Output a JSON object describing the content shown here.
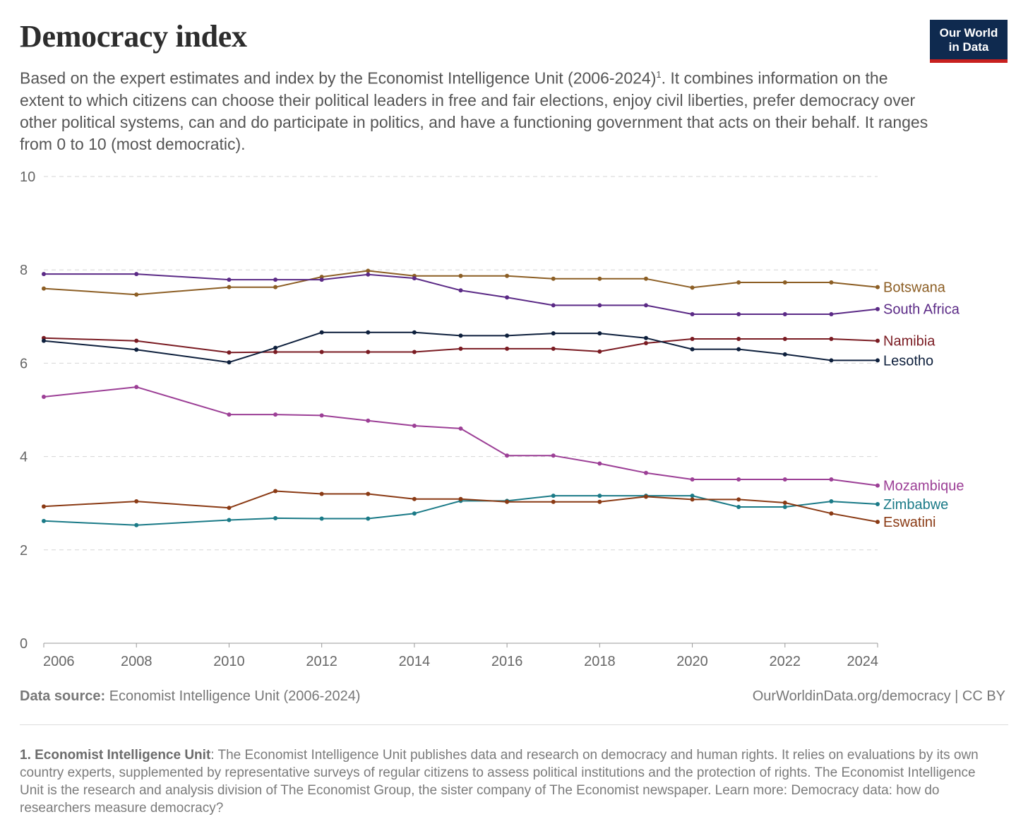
{
  "header": {
    "title": "Democracy index",
    "subtitle_main": "Based on the expert estimates and index by the Economist Intelligence Unit (2006-2024)",
    "subtitle_ref": "1",
    "subtitle_rest": ". It combines information on the extent to which citizens can choose their political leaders in free and fair elections, enjoy civil liberties, prefer democracy over other political systems, can and do participate in politics, and have a functioning government that acts on their behalf. It ranges from 0 to 10 (most democratic)."
  },
  "logo": {
    "line1": "Our World",
    "line2": "in Data",
    "bg_color": "#0f2a4f",
    "bar_color": "#c8201f"
  },
  "footer": {
    "source_label": "Data source:",
    "source_text": "Economist Intelligence Unit (2006-2024)",
    "url": "OurWorldinData.org/democracy | CC BY",
    "footnote_label": "1. Economist Intelligence Unit",
    "footnote_text": ": The Economist Intelligence Unit publishes data and research on democracy and human rights. It relies on evaluations by its own country experts, supplemented by representative surveys of regular citizens to assess political institutions and the protection of rights. The Economist Intelligence Unit is the research and analysis division of The Economist Group, the sister company of The Economist newspaper. Learn more: Democracy data: how do researchers measure democracy?"
  },
  "chart_data": {
    "type": "line",
    "title": "Democracy index",
    "xlim": [
      2006,
      2024
    ],
    "ylim": [
      0,
      10
    ],
    "x_ticks": [
      2006,
      2008,
      2010,
      2012,
      2014,
      2016,
      2018,
      2020,
      2022,
      2024
    ],
    "y_ticks": [
      0,
      2,
      4,
      6,
      8,
      10
    ],
    "grid": "horizontal dashed",
    "legend": "right (labels at line ends)",
    "series": [
      {
        "name": "Botswana",
        "color": "#8c5e24",
        "points": [
          [
            2006,
            7.6
          ],
          [
            2008,
            7.47
          ],
          [
            2010,
            7.63
          ],
          [
            2011,
            7.63
          ],
          [
            2012,
            7.85
          ],
          [
            2013,
            7.98
          ],
          [
            2014,
            7.87
          ],
          [
            2015,
            7.87
          ],
          [
            2016,
            7.87
          ],
          [
            2017,
            7.81
          ],
          [
            2018,
            7.81
          ],
          [
            2019,
            7.81
          ],
          [
            2020,
            7.62
          ],
          [
            2021,
            7.73
          ],
          [
            2022,
            7.73
          ],
          [
            2023,
            7.73
          ],
          [
            2024,
            7.63
          ]
        ]
      },
      {
        "name": "South Africa",
        "color": "#5b2a86",
        "points": [
          [
            2006,
            7.91
          ],
          [
            2008,
            7.91
          ],
          [
            2010,
            7.79
          ],
          [
            2011,
            7.79
          ],
          [
            2012,
            7.79
          ],
          [
            2013,
            7.9
          ],
          [
            2014,
            7.82
          ],
          [
            2015,
            7.56
          ],
          [
            2016,
            7.41
          ],
          [
            2017,
            7.24
          ],
          [
            2018,
            7.24
          ],
          [
            2019,
            7.24
          ],
          [
            2020,
            7.05
          ],
          [
            2021,
            7.05
          ],
          [
            2022,
            7.05
          ],
          [
            2023,
            7.05
          ],
          [
            2024,
            7.16
          ]
        ]
      },
      {
        "name": "Namibia",
        "color": "#7a1b22",
        "points": [
          [
            2006,
            6.54
          ],
          [
            2008,
            6.48
          ],
          [
            2010,
            6.23
          ],
          [
            2011,
            6.24
          ],
          [
            2012,
            6.24
          ],
          [
            2013,
            6.24
          ],
          [
            2014,
            6.24
          ],
          [
            2015,
            6.31
          ],
          [
            2016,
            6.31
          ],
          [
            2017,
            6.31
          ],
          [
            2018,
            6.25
          ],
          [
            2019,
            6.43
          ],
          [
            2020,
            6.52
          ],
          [
            2021,
            6.52
          ],
          [
            2022,
            6.52
          ],
          [
            2023,
            6.52
          ],
          [
            2024,
            6.48
          ]
        ]
      },
      {
        "name": "Lesotho",
        "color": "#0d1f3c",
        "points": [
          [
            2006,
            6.48
          ],
          [
            2008,
            6.29
          ],
          [
            2010,
            6.02
          ],
          [
            2011,
            6.33
          ],
          [
            2012,
            6.66
          ],
          [
            2013,
            6.66
          ],
          [
            2014,
            6.66
          ],
          [
            2015,
            6.59
          ],
          [
            2016,
            6.59
          ],
          [
            2017,
            6.64
          ],
          [
            2018,
            6.64
          ],
          [
            2019,
            6.54
          ],
          [
            2020,
            6.3
          ],
          [
            2021,
            6.3
          ],
          [
            2022,
            6.19
          ],
          [
            2023,
            6.06
          ],
          [
            2024,
            6.06
          ]
        ]
      },
      {
        "name": "Mozambique",
        "color": "#9c3f96",
        "points": [
          [
            2006,
            5.28
          ],
          [
            2008,
            5.49
          ],
          [
            2010,
            4.9
          ],
          [
            2011,
            4.9
          ],
          [
            2012,
            4.88
          ],
          [
            2013,
            4.77
          ],
          [
            2014,
            4.66
          ],
          [
            2015,
            4.6
          ],
          [
            2016,
            4.02
          ],
          [
            2017,
            4.02
          ],
          [
            2018,
            3.85
          ],
          [
            2019,
            3.65
          ],
          [
            2020,
            3.51
          ],
          [
            2021,
            3.51
          ],
          [
            2022,
            3.51
          ],
          [
            2023,
            3.51
          ],
          [
            2024,
            3.38
          ]
        ]
      },
      {
        "name": "Zimbabwe",
        "color": "#1a7a87",
        "points": [
          [
            2006,
            2.62
          ],
          [
            2008,
            2.53
          ],
          [
            2010,
            2.64
          ],
          [
            2011,
            2.68
          ],
          [
            2012,
            2.67
          ],
          [
            2013,
            2.67
          ],
          [
            2014,
            2.78
          ],
          [
            2015,
            3.05
          ],
          [
            2016,
            3.05
          ],
          [
            2017,
            3.16
          ],
          [
            2018,
            3.16
          ],
          [
            2019,
            3.16
          ],
          [
            2020,
            3.16
          ],
          [
            2021,
            2.92
          ],
          [
            2022,
            2.92
          ],
          [
            2023,
            3.04
          ],
          [
            2024,
            2.98
          ]
        ]
      },
      {
        "name": "Eswatini",
        "color": "#8a3a14",
        "points": [
          [
            2006,
            2.93
          ],
          [
            2008,
            3.04
          ],
          [
            2010,
            2.9
          ],
          [
            2011,
            3.26
          ],
          [
            2012,
            3.2
          ],
          [
            2013,
            3.2
          ],
          [
            2014,
            3.09
          ],
          [
            2015,
            3.09
          ],
          [
            2016,
            3.03
          ],
          [
            2017,
            3.03
          ],
          [
            2018,
            3.03
          ],
          [
            2019,
            3.14
          ],
          [
            2020,
            3.08
          ],
          [
            2021,
            3.08
          ],
          [
            2022,
            3.01
          ],
          [
            2023,
            2.78
          ],
          [
            2024,
            2.6
          ]
        ]
      }
    ]
  }
}
